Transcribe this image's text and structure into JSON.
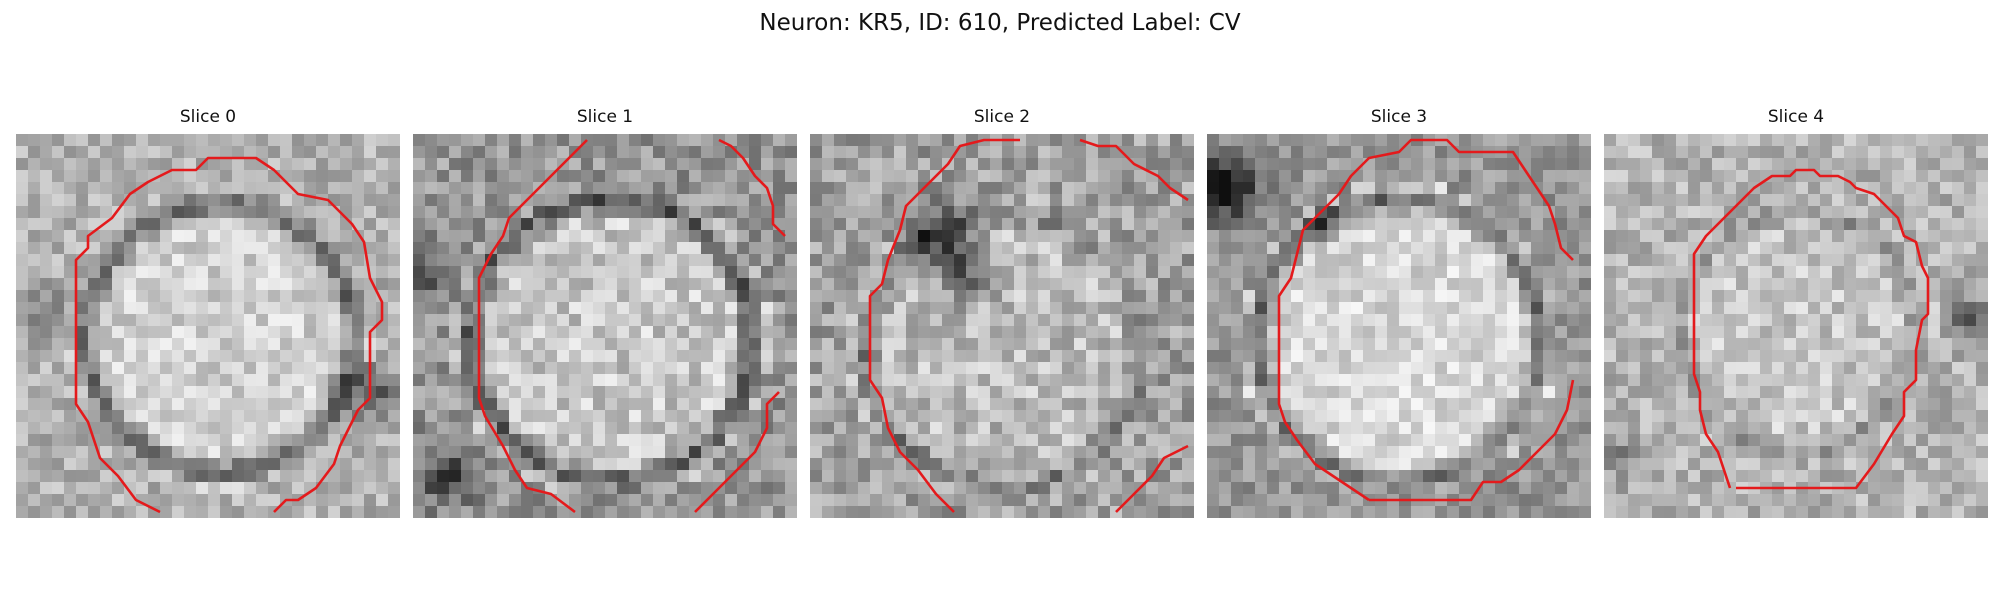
{
  "title": "Neuron: KR5, ID: 610, Predicted Label: CV",
  "contour_color": "#e41a1c",
  "slices": [
    {
      "label": "Slice 0"
    },
    {
      "label": "Slice 1"
    },
    {
      "label": "Slice 2"
    },
    {
      "label": "Slice 3"
    },
    {
      "label": "Slice 4"
    }
  ]
}
